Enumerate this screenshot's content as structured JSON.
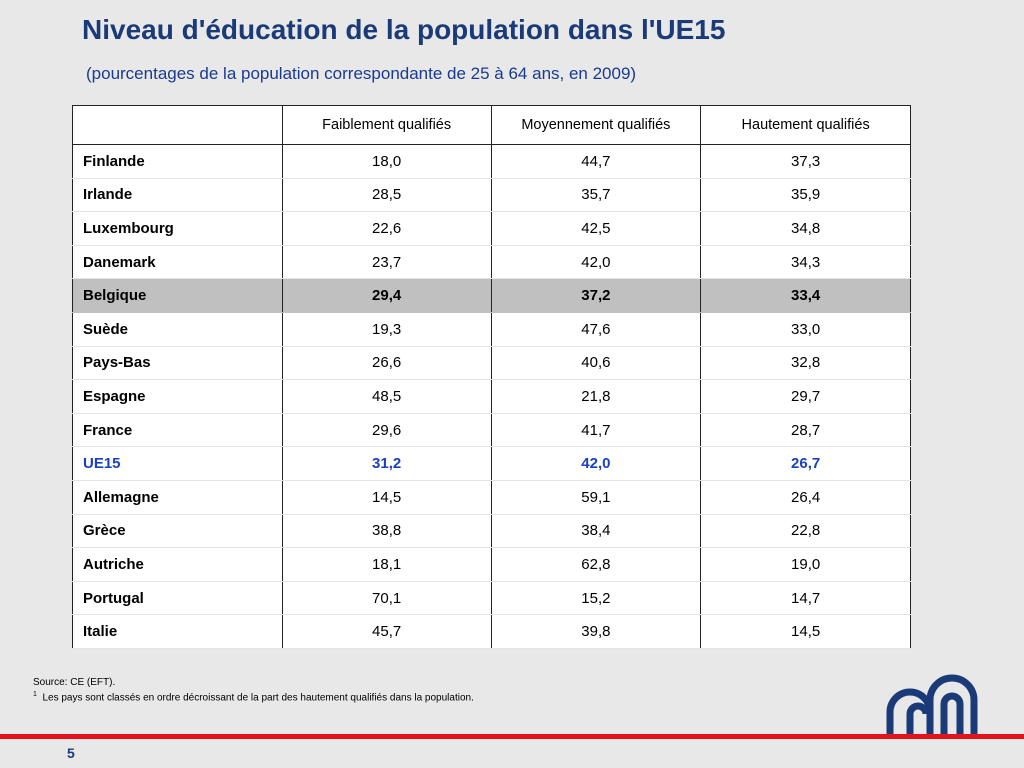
{
  "title": "Niveau d'éducation de la population dans l'UE15",
  "subtitle": "(pourcentages de la population correspondante de 25 à 64 ans, en 2009)",
  "table": {
    "headers": [
      "",
      "Faiblement qualifiés",
      "Moyennement qualifiés",
      "Hautement qualifiés"
    ],
    "rows": [
      {
        "country": "Finlande",
        "low": "18,0",
        "mid": "44,7",
        "high": "37,3"
      },
      {
        "country": "Irlande",
        "low": "28,5",
        "mid": "35,7",
        "high": "35,9"
      },
      {
        "country": "Luxembourg",
        "low": "22,6",
        "mid": "42,5",
        "high": "34,8"
      },
      {
        "country": "Danemark",
        "low": "23,7",
        "mid": "42,0",
        "high": "34,3"
      },
      {
        "country": "Belgique",
        "low": "29,4",
        "mid": "37,2",
        "high": "33,4",
        "style": "highlight"
      },
      {
        "country": "Suède",
        "low": "19,3",
        "mid": "47,6",
        "high": "33,0"
      },
      {
        "country": "Pays-Bas",
        "low": "26,6",
        "mid": "40,6",
        "high": "32,8"
      },
      {
        "country": "Espagne",
        "low": "48,5",
        "mid": "21,8",
        "high": "29,7"
      },
      {
        "country": "France",
        "low": "29,6",
        "mid": "41,7",
        "high": "28,7"
      },
      {
        "country": "UE15",
        "low": "31,2",
        "mid": "42,0",
        "high": "26,7",
        "style": "emph"
      },
      {
        "country": "Allemagne",
        "low": "14,5",
        "mid": "59,1",
        "high": "26,4"
      },
      {
        "country": "Grèce",
        "low": "38,8",
        "mid": "38,4",
        "high": "22,8"
      },
      {
        "country": "Autriche",
        "low": "18,1",
        "mid": "62,8",
        "high": "19,0"
      },
      {
        "country": "Portugal",
        "low": "70,1",
        "mid": "15,2",
        "high": "14,7"
      },
      {
        "country": "Italie",
        "low": "45,7",
        "mid": "39,8",
        "high": "14,5"
      }
    ]
  },
  "footnotes": {
    "source": "Source: CE (EFT).",
    "note_marker": "1",
    "note": "Les pays sont classés en ordre décroissant de la part des hautement qualifiés dans la population."
  },
  "page_number": "5",
  "colors": {
    "title": "#1a3a78",
    "emphasis": "#1a3fbf",
    "highlight_row": "#c0c0c0",
    "footer_bar": "#e3121b",
    "logo": "#1a3a78"
  },
  "icons": {
    "logo": "institution-logo"
  }
}
